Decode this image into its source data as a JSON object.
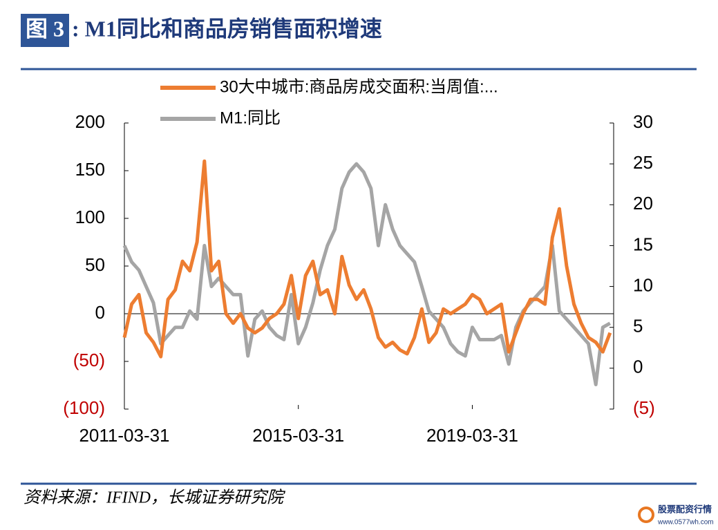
{
  "figure_label": "图 3",
  "source": "资料来源：IFIND，长城证券研究院",
  "watermark": {
    "name": "股票配资行情",
    "url": "www.0577wh.com"
  },
  "chart_data": {
    "type": "line",
    "title": ": M1同比和商品房销售面积增速",
    "x": [
      "2011-03-31",
      "2011-05-31",
      "2011-07-31",
      "2011-09-30",
      "2011-11-30",
      "2012-01-31",
      "2012-03-31",
      "2012-05-31",
      "2012-07-31",
      "2012-09-30",
      "2012-11-30",
      "2013-01-31",
      "2013-03-31",
      "2013-05-31",
      "2013-07-31",
      "2013-09-30",
      "2013-11-30",
      "2014-01-31",
      "2014-03-31",
      "2014-05-31",
      "2014-07-31",
      "2014-09-30",
      "2014-11-30",
      "2015-01-31",
      "2015-03-31",
      "2015-05-31",
      "2015-07-31",
      "2015-09-30",
      "2015-11-30",
      "2016-01-31",
      "2016-03-31",
      "2016-05-31",
      "2016-07-31",
      "2016-09-30",
      "2016-11-30",
      "2017-01-31",
      "2017-03-31",
      "2017-05-31",
      "2017-07-31",
      "2017-09-30",
      "2017-11-30",
      "2018-01-31",
      "2018-03-31",
      "2018-05-31",
      "2018-07-31",
      "2018-09-30",
      "2018-11-30",
      "2019-01-31",
      "2019-03-31",
      "2019-05-31",
      "2019-07-31",
      "2019-09-30",
      "2019-11-30",
      "2020-01-31",
      "2020-03-31",
      "2020-05-31",
      "2020-07-31",
      "2020-09-30",
      "2020-11-30",
      "2021-01-31",
      "2021-03-31",
      "2021-05-31",
      "2021-07-31",
      "2021-09-30",
      "2021-11-30",
      "2022-01-31",
      "2022-03-31",
      "2022-05-31"
    ],
    "series": [
      {
        "name": "30大中城市:商品房成交面积:当周值:...",
        "color": "#ed7d31",
        "values": [
          -25,
          10,
          20,
          -20,
          -30,
          -45,
          15,
          25,
          55,
          45,
          75,
          160,
          45,
          55,
          0,
          -10,
          0,
          -15,
          -20,
          -15,
          -5,
          0,
          10,
          40,
          -5,
          40,
          55,
          20,
          25,
          0,
          60,
          30,
          15,
          25,
          5,
          -25,
          -35,
          -30,
          -38,
          -42,
          -25,
          5,
          -30,
          -20,
          5,
          0,
          5,
          10,
          20,
          15,
          0,
          5,
          10,
          -40,
          -20,
          0,
          15,
          15,
          10,
          80,
          110,
          50,
          10,
          -10,
          -25,
          -30,
          -40,
          -20
        ]
      },
      {
        "name": "M1:同比",
        "color": "#a5a5a5",
        "axis": "y2",
        "values": [
          15,
          13,
          12,
          10,
          8,
          3,
          4,
          5,
          5,
          7,
          6,
          15,
          10,
          11,
          10,
          9,
          9,
          1.5,
          6,
          7,
          5,
          4,
          3.5,
          9,
          3,
          5,
          8,
          12,
          15,
          17,
          22,
          24,
          25,
          24,
          22,
          15,
          20,
          17,
          15,
          14,
          13,
          10,
          7,
          6,
          5,
          3,
          2,
          1.5,
          5,
          3.5,
          3.5,
          3.5,
          4,
          0.5,
          5,
          7,
          8,
          9,
          10,
          15,
          7,
          6,
          5,
          4,
          3,
          -2,
          5,
          5.5
        ]
      }
    ],
    "xlim": [
      "2011-03-31",
      "2022-06-30"
    ],
    "xticks": [
      "2011-03-31",
      "2015-03-31",
      "2019-03-31"
    ],
    "ylim": [
      -100,
      200
    ],
    "yticks": [
      {
        "value": -100,
        "label": "(100)"
      },
      {
        "value": -50,
        "label": "(50)"
      },
      0,
      50,
      100,
      150,
      200
    ],
    "y2lim": [
      -5,
      30
    ],
    "y2ticks": [
      {
        "value": -5,
        "label": "(5)"
      },
      0,
      5,
      10,
      15,
      20,
      25,
      30
    ]
  }
}
